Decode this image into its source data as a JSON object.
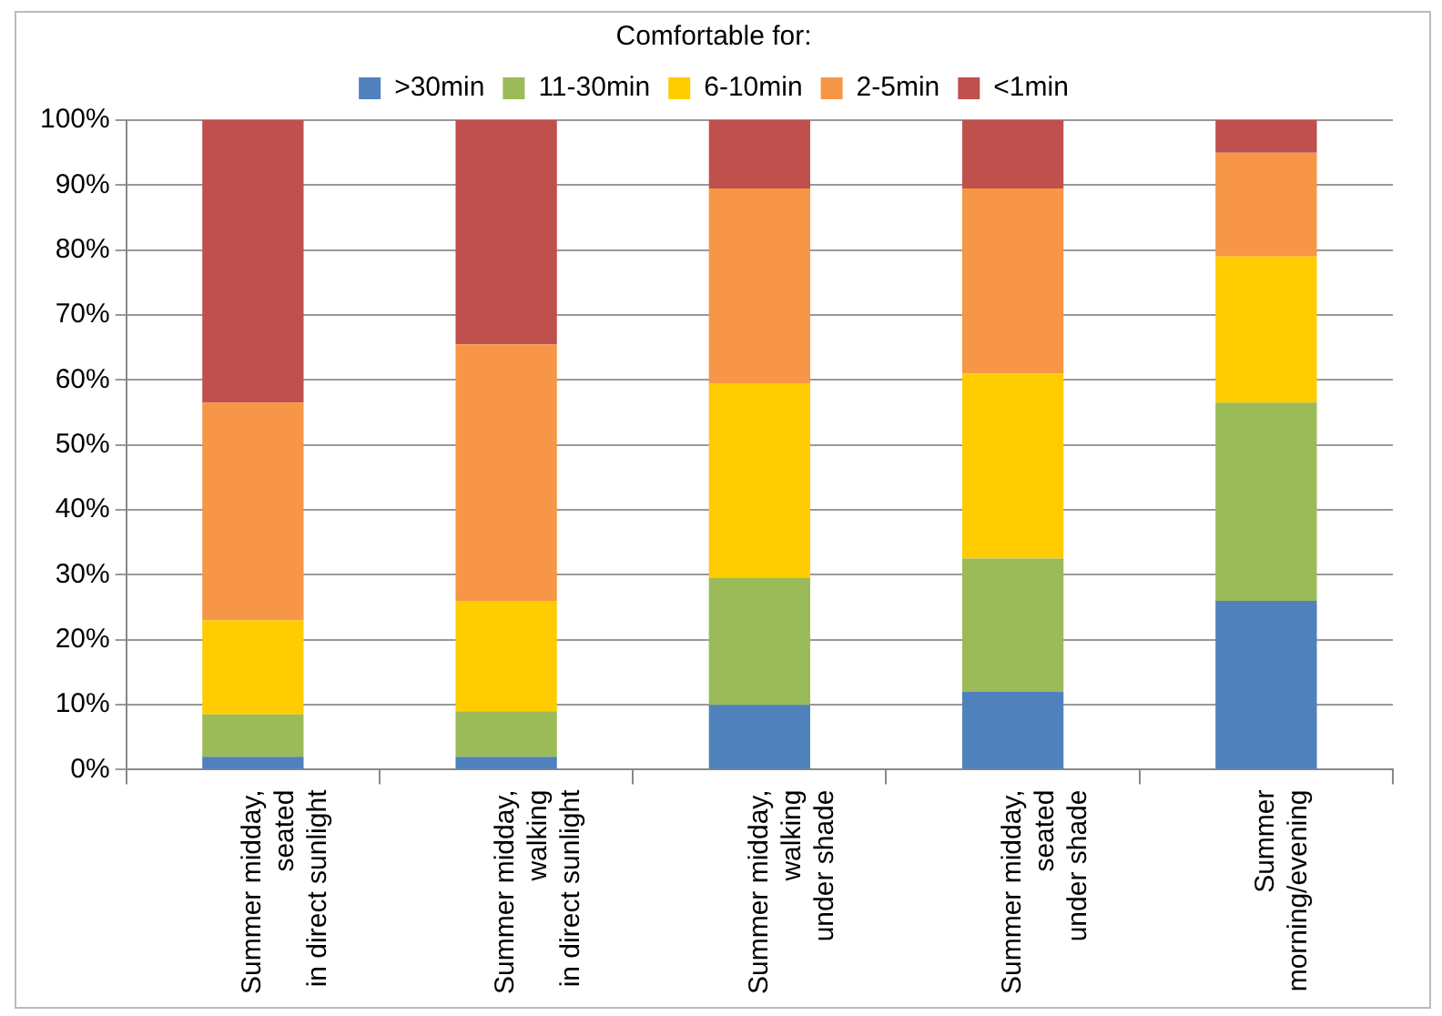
{
  "chart_data": {
    "type": "bar",
    "stacked": true,
    "legend": "top",
    "legend_title": "Comfortable for:",
    "grid": "y",
    "categories": [
      [
        "Summer midday,",
        "seated",
        "in direct sunlight"
      ],
      [
        "Summer midday,",
        "walking",
        "in direct sunlight"
      ],
      [
        "Summer midday,",
        "walking",
        "under shade"
      ],
      [
        "Summer midday,",
        "seated",
        "under shade"
      ],
      [
        "Summer",
        "morning/evening"
      ]
    ],
    "series": [
      {
        "name": ">30min",
        "color": "#4f81bd",
        "values": [
          2,
          2,
          10,
          12,
          26
        ]
      },
      {
        "name": "11-30min",
        "color": "#9bbb59",
        "values": [
          6.5,
          7,
          19.5,
          20.5,
          30.5
        ]
      },
      {
        "name": "6-10min",
        "color": "#ffcc00",
        "values": [
          14.5,
          17,
          30,
          28.5,
          22.5
        ]
      },
      {
        "name": "2-5min",
        "color": "#f79646",
        "values": [
          33.5,
          39.5,
          30,
          28.5,
          16
        ]
      },
      {
        "name": "<1min",
        "color": "#c0504d",
        "values": [
          43.5,
          34.5,
          10.5,
          10.5,
          5
        ]
      }
    ],
    "ylim": [
      0,
      100
    ],
    "yticks": [
      {
        "value": 0,
        "label": "0%"
      },
      {
        "value": 10,
        "label": "10%"
      },
      {
        "value": 20,
        "label": "20%"
      },
      {
        "value": 30,
        "label": "30%"
      },
      {
        "value": 40,
        "label": "40%"
      },
      {
        "value": 50,
        "label": "50%"
      },
      {
        "value": 60,
        "label": "60%"
      },
      {
        "value": 70,
        "label": "70%"
      },
      {
        "value": 80,
        "label": "80%"
      },
      {
        "value": 90,
        "label": "90%"
      },
      {
        "value": 100,
        "label": "100%"
      }
    ]
  }
}
